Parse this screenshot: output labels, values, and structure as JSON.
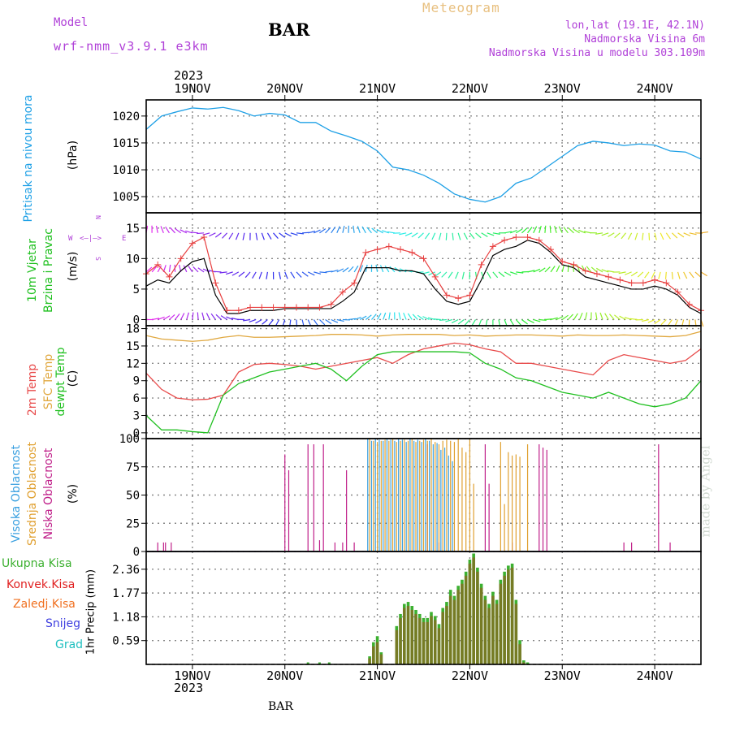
{
  "header": {
    "model_label": "Model",
    "model_value": "wrf-nmm_v3.9.1 e3km",
    "station": "BAR",
    "title": "Meteogram",
    "lonlat": "lon,lat (19.1E, 42.1N)",
    "altitude": "Nadmorska Visina 6m",
    "model_altitude": "Nadmorska Visina u modelu 303.109m",
    "year": "2023",
    "footer_station": "BAR",
    "watermark": "made by Angel"
  },
  "colors": {
    "pressure": "#1ea0e6",
    "wind_speed": "#000000",
    "wind_gust": "#e84040",
    "temp2m": "#e84a4a",
    "sfc_temp": "#e0a840",
    "dewpoint": "#20c020",
    "high_cloud": "#3aa0e0",
    "mid_cloud": "#e0a030",
    "low_cloud": "#c0208a",
    "total_precip": "#3cb030",
    "conv_precip": "#e02020",
    "freezing_precip": "#f07020",
    "snow": "#4040e0",
    "graupel": "#20c0c0",
    "purple_text": "#b040d8"
  },
  "chart_data": [
    {
      "type": "line",
      "x_ticks": [
        "19NOV",
        "20NOV",
        "21NOV",
        "22NOV",
        "23NOV",
        "24NOV"
      ],
      "x_start": "2023-11-18 12UTC",
      "x_end": "2023-11-24 12UTC",
      "ylabel_lines": [
        "Pritisak na nivou mora",
        "(hPa)"
      ],
      "ylim": [
        1002,
        1023
      ],
      "yticks": [
        1005,
        1010,
        1015,
        1020
      ],
      "grid": true,
      "series": [
        {
          "name": "Pritisak na nivou mora",
          "step_hours": 3,
          "values": [
            1017.5,
            1020.0,
            1020.8,
            1021.5,
            1021.3,
            1021.6,
            1021.0,
            1020.0,
            1020.5,
            1020.2,
            1018.8,
            1018.8,
            1017.2,
            1016.3,
            1015.3,
            1013.5,
            1010.5,
            1010.0,
            1009.0,
            1007.5,
            1005.5,
            1004.5,
            1004.0,
            1005.0,
            1007.5,
            1008.5,
            1010.5,
            1012.5,
            1014.5,
            1015.3,
            1015.0,
            1014.5,
            1014.8,
            1014.6,
            1013.5,
            1013.3,
            1012.0
          ]
        }
      ]
    },
    {
      "type": "line",
      "ylabel_lines": [
        "10m Vjetar",
        "Brzina i Pravac",
        "(m/s)"
      ],
      "direction_key": [
        "N",
        "E",
        "W",
        "S"
      ],
      "ylim": [
        -1,
        17.5
      ],
      "yticks": [
        0,
        5,
        10,
        15
      ],
      "grid": true,
      "series": [
        {
          "name": "Brzina",
          "step_hours": 3,
          "values": [
            5.5,
            6.5,
            6.0,
            8.0,
            9.5,
            10.0,
            4.0,
            1.0,
            1.0,
            1.5,
            1.5,
            1.5,
            1.8,
            1.8,
            1.8,
            1.8,
            1.8,
            3.0,
            4.5,
            8.5,
            8.5,
            8.5,
            8.0,
            8.0,
            7.5,
            5.0,
            3.0,
            2.5,
            3.0,
            6.5,
            10.5,
            11.5,
            12.0,
            13.0,
            12.5,
            11.0,
            9.0,
            8.5,
            7.0,
            6.5,
            6.0,
            5.5,
            5.0,
            5.0,
            5.5,
            5.0,
            4.0,
            2.0,
            1.0
          ]
        },
        {
          "name": "Udari",
          "step_hours": 3,
          "values": [
            7.5,
            9.0,
            7.0,
            10.0,
            12.5,
            13.5,
            6.0,
            1.5,
            1.5,
            2.0,
            2.0,
            2.0,
            2.0,
            2.0,
            2.0,
            2.0,
            2.5,
            4.5,
            6.0,
            11.0,
            11.5,
            12.0,
            11.5,
            11.0,
            10.0,
            7.0,
            4.0,
            3.5,
            4.0,
            9.0,
            12.0,
            13.0,
            13.5,
            13.5,
            13.0,
            11.5,
            9.5,
            9.0,
            8.0,
            7.5,
            7.0,
            6.5,
            6.0,
            6.0,
            6.5,
            6.0,
            4.5,
            2.5,
            1.5
          ]
        }
      ]
    },
    {
      "type": "line",
      "ylabel_lines": [
        "2m Temp",
        "SFC Temp",
        "dewpt Temp",
        "(C)"
      ],
      "ylim": [
        -1,
        18.5
      ],
      "yticks": [
        0,
        3,
        6,
        9,
        12,
        15,
        18
      ],
      "grid": true,
      "series": [
        {
          "name": "2m Temp",
          "step_hours": 3,
          "values": [
            10.3,
            7.5,
            6.0,
            5.7,
            5.8,
            6.5,
            10.5,
            11.8,
            12.0,
            11.8,
            11.5,
            11.0,
            11.5,
            12.0,
            12.5,
            13.0,
            12.0,
            13.5,
            14.5,
            15.0,
            15.5,
            15.2,
            14.5,
            14.0,
            12.0,
            12.0,
            11.5,
            11.0,
            10.5,
            10.0,
            12.5,
            13.5,
            13.0,
            12.5,
            12.0,
            12.5,
            14.5
          ]
        },
        {
          "name": "SFC Temp",
          "step_hours": 3,
          "values": [
            16.8,
            16.2,
            16.0,
            15.8,
            16.0,
            16.5,
            16.8,
            16.5,
            16.5,
            16.6,
            16.7,
            16.8,
            17.0,
            17.0,
            16.9,
            16.7,
            16.9,
            17.0,
            17.0,
            17.0,
            16.8,
            16.9,
            16.7,
            16.8,
            16.9,
            16.9,
            16.8,
            16.7,
            16.9,
            16.8,
            16.8,
            16.9,
            16.8,
            16.7,
            16.6,
            16.8,
            17.5
          ]
        },
        {
          "name": "dewpt Temp",
          "step_hours": 3,
          "values": [
            3.0,
            0.5,
            0.5,
            0.2,
            0.0,
            6.5,
            8.5,
            9.5,
            10.5,
            11.0,
            11.5,
            12.0,
            11.0,
            9.0,
            11.5,
            13.5,
            14.0,
            14.0,
            14.0,
            14.0,
            14.0,
            13.8,
            12.0,
            11.0,
            9.5,
            9.0,
            8.0,
            7.0,
            6.5,
            6.0,
            7.0,
            6.0,
            5.0,
            4.5,
            5.0,
            6.0,
            9.0
          ]
        }
      ]
    },
    {
      "type": "bar",
      "ylabel_lines": [
        "Visoka Oblacnost",
        "Srednja Oblacnost",
        "Niska Oblacnost",
        "(%)"
      ],
      "ylim": [
        0,
        100
      ],
      "yticks": [
        0,
        25,
        50,
        75,
        100
      ],
      "grid": true,
      "series": [
        {
          "name": "Niska Oblacnost",
          "bars": [
            [
              3,
              8
            ],
            [
              4.5,
              8
            ],
            [
              5,
              8
            ],
            [
              6.5,
              8
            ],
            [
              36,
              86
            ],
            [
              37,
              72
            ],
            [
              42,
              95
            ],
            [
              43.5,
              95
            ],
            [
              45,
              10
            ],
            [
              46,
              95
            ],
            [
              49,
              8
            ],
            [
              51,
              8
            ],
            [
              52,
              72
            ],
            [
              54,
              8
            ],
            [
              73,
              95
            ],
            [
              76,
              8
            ],
            [
              88,
              95
            ],
            [
              89,
              60
            ],
            [
              95,
              8
            ],
            [
              102,
              95
            ],
            [
              103,
              92
            ],
            [
              104,
              90
            ],
            [
              124,
              8
            ],
            [
              126,
              8
            ],
            [
              133,
              95
            ],
            [
              136,
              8
            ]
          ]
        },
        {
          "name": "Srednja Oblacnost",
          "bars": [
            [
              58,
              100
            ],
            [
              59,
              98
            ],
            [
              60,
              97
            ],
            [
              61,
              98
            ],
            [
              62,
              99
            ],
            [
              63,
              98
            ],
            [
              64,
              100
            ],
            [
              65,
              97
            ],
            [
              66,
              98
            ],
            [
              67,
              99
            ],
            [
              68,
              98
            ],
            [
              69,
              100
            ],
            [
              70,
              97
            ],
            [
              71,
              98
            ],
            [
              72,
              99
            ],
            [
              73,
              98
            ],
            [
              74,
              100
            ],
            [
              75,
              97
            ],
            [
              76,
              95
            ],
            [
              77,
              98
            ],
            [
              78,
              99
            ],
            [
              79,
              98
            ],
            [
              80,
              97
            ],
            [
              81,
              100
            ],
            [
              82,
              92
            ],
            [
              83,
              88
            ],
            [
              84,
              99
            ],
            [
              85,
              60
            ],
            [
              92,
              97
            ],
            [
              93,
              42
            ],
            [
              94,
              88
            ],
            [
              95,
              85
            ],
            [
              96,
              86
            ],
            [
              97,
              84
            ],
            [
              99,
              95
            ]
          ]
        },
        {
          "name": "Visoka Oblacnost",
          "bars": [
            [
              57.5,
              100
            ],
            [
              58.5,
              98
            ],
            [
              59.5,
              100
            ],
            [
              60.5,
              99
            ],
            [
              61.5,
              98
            ],
            [
              62.5,
              100
            ],
            [
              63.5,
              99
            ],
            [
              64.5,
              98
            ],
            [
              65.5,
              100
            ],
            [
              66.5,
              99
            ],
            [
              67.5,
              97
            ],
            [
              68.5,
              100
            ],
            [
              69.5,
              98
            ],
            [
              70.5,
              99
            ],
            [
              71.5,
              97
            ],
            [
              72.5,
              100
            ],
            [
              73.5,
              98
            ],
            [
              74.5,
              95
            ],
            [
              75.5,
              96
            ],
            [
              76.5,
              90
            ],
            [
              77.5,
              92
            ],
            [
              78.5,
              85
            ],
            [
              79.5,
              80
            ]
          ]
        }
      ]
    },
    {
      "type": "bar",
      "ylabel_lines": [
        "Ukupna Kisa",
        "Konvek.Kisa",
        "Zaledj.Kisa",
        "Snijeg",
        "Grad",
        "1hr Precip (mm)"
      ],
      "ylim": [
        0,
        2.8
      ],
      "yticks": [
        0,
        0.59,
        1.18,
        1.77,
        2.36
      ],
      "grid": true,
      "series": [
        {
          "name": "Ukupna Kisa",
          "step_hours": 1,
          "start_hour": 58,
          "values": [
            0.2,
            0.55,
            0.7,
            0.3,
            0.0,
            0.0,
            0.0,
            0.95,
            1.25,
            1.5,
            1.55,
            1.45,
            1.35,
            1.25,
            1.15,
            1.15,
            1.3,
            1.2,
            1.0,
            1.4,
            1.55,
            1.85,
            1.7,
            1.95,
            2.1,
            2.3,
            2.6,
            2.75,
            2.4,
            2.0,
            1.7,
            1.5,
            1.8,
            1.6,
            2.1,
            2.3,
            2.45,
            2.5,
            1.6,
            0.6,
            0.1,
            0.05
          ]
        },
        {
          "name": "Konvek.Kisa",
          "step_hours": 1,
          "start_hour": 58,
          "values": [
            0.15,
            0.45,
            0.55,
            0.25,
            0.0,
            0.0,
            0.0,
            0.85,
            1.15,
            1.4,
            1.45,
            1.35,
            1.25,
            1.15,
            1.05,
            1.05,
            1.2,
            1.1,
            0.9,
            1.3,
            1.45,
            1.7,
            1.6,
            1.85,
            2.0,
            2.2,
            2.5,
            2.65,
            2.3,
            1.9,
            1.6,
            1.4,
            1.7,
            1.5,
            2.0,
            2.2,
            2.35,
            2.4,
            1.5,
            0.5,
            0.05,
            0.0
          ]
        }
      ]
    }
  ]
}
